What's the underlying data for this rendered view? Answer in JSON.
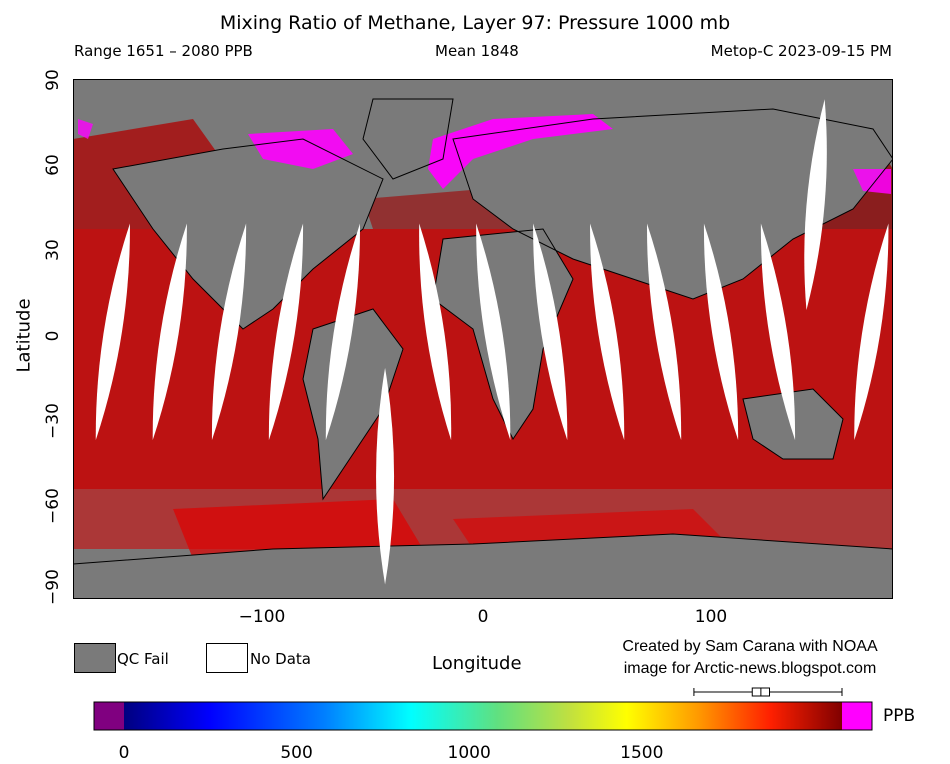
{
  "header": {
    "title": "Mixing Ratio of Methane, Layer 97: Pressure 1000 mb",
    "range": "Range 1651 – 2080 PPB",
    "mean": "Mean 1848",
    "source": "Metop-C 2023-09-15 PM"
  },
  "axes": {
    "ylabel": "Latitude",
    "xlabel": "Longitude",
    "lat_ticks": [
      "90",
      "60",
      "30",
      "0",
      "−30",
      "−60",
      "−90"
    ],
    "lon_ticks": [
      "−100",
      "0",
      "100"
    ]
  },
  "legend": {
    "qc_fail": "QC Fail",
    "no_data": "No Data",
    "qc_color": "#7a7a7a",
    "nodata_color": "#ffffff"
  },
  "credit": {
    "line1": "Created by Sam Carana with NOAA",
    "line2": "image for Arctic-news.blogspot.com"
  },
  "colorbar": {
    "unit": "PPB",
    "tick_labels": [
      "0",
      "500",
      "1000",
      "1500"
    ],
    "low_color": "#800080",
    "high_color": "#ff00ff"
  },
  "chart_data": {
    "type": "heatmap",
    "title": "Mixing Ratio of Methane, Layer 97: Pressure 1000 mb",
    "xlabel": "Longitude",
    "ylabel": "Latitude",
    "xlim": [
      -180,
      180
    ],
    "ylim": [
      -90,
      90
    ],
    "x_ticks": [
      -100,
      0,
      100
    ],
    "y_ticks": [
      90,
      60,
      30,
      0,
      -30,
      -60,
      -90
    ],
    "colorbar_ticks": [
      0,
      500,
      1000,
      1500
    ],
    "colorbar_unit": "PPB",
    "range_ppb": [
      1651,
      2080
    ],
    "mean_ppb": 1848,
    "boxplot": {
      "min": 1651,
      "q1": 1820,
      "median": 1845,
      "q3": 1870,
      "max": 2080
    },
    "no_data_swaths": [
      {
        "top": [
          -155,
          40
        ],
        "bottom": [
          -170,
          -35
        ]
      },
      {
        "top": [
          -130,
          40
        ],
        "bottom": [
          -145,
          -35
        ]
      },
      {
        "top": [
          -104,
          40
        ],
        "bottom": [
          -119,
          -35
        ]
      },
      {
        "top": [
          -79,
          40
        ],
        "bottom": [
          -94,
          -35
        ]
      },
      {
        "top": [
          -54,
          40
        ],
        "bottom": [
          -69,
          -35
        ]
      },
      {
        "top": [
          -28,
          40
        ],
        "bottom": [
          -14,
          -35
        ]
      },
      {
        "top": [
          -3,
          40
        ],
        "bottom": [
          12,
          -35
        ]
      },
      {
        "top": [
          22,
          40
        ],
        "bottom": [
          37,
          -35
        ]
      },
      {
        "top": [
          47,
          40
        ],
        "bottom": [
          62,
          -35
        ]
      },
      {
        "top": [
          72,
          40
        ],
        "bottom": [
          87,
          -35
        ]
      },
      {
        "top": [
          97,
          40
        ],
        "bottom": [
          112,
          -35
        ]
      },
      {
        "top": [
          122,
          40
        ],
        "bottom": [
          137,
          -35
        ]
      },
      {
        "top": [
          178,
          40
        ],
        "bottom": [
          163,
          -35
        ]
      },
      {
        "top": [
          -43,
          -10
        ],
        "bottom": [
          -43,
          -85
        ]
      },
      {
        "top": [
          150,
          83
        ],
        "bottom": [
          142,
          10
        ]
      }
    ]
  }
}
